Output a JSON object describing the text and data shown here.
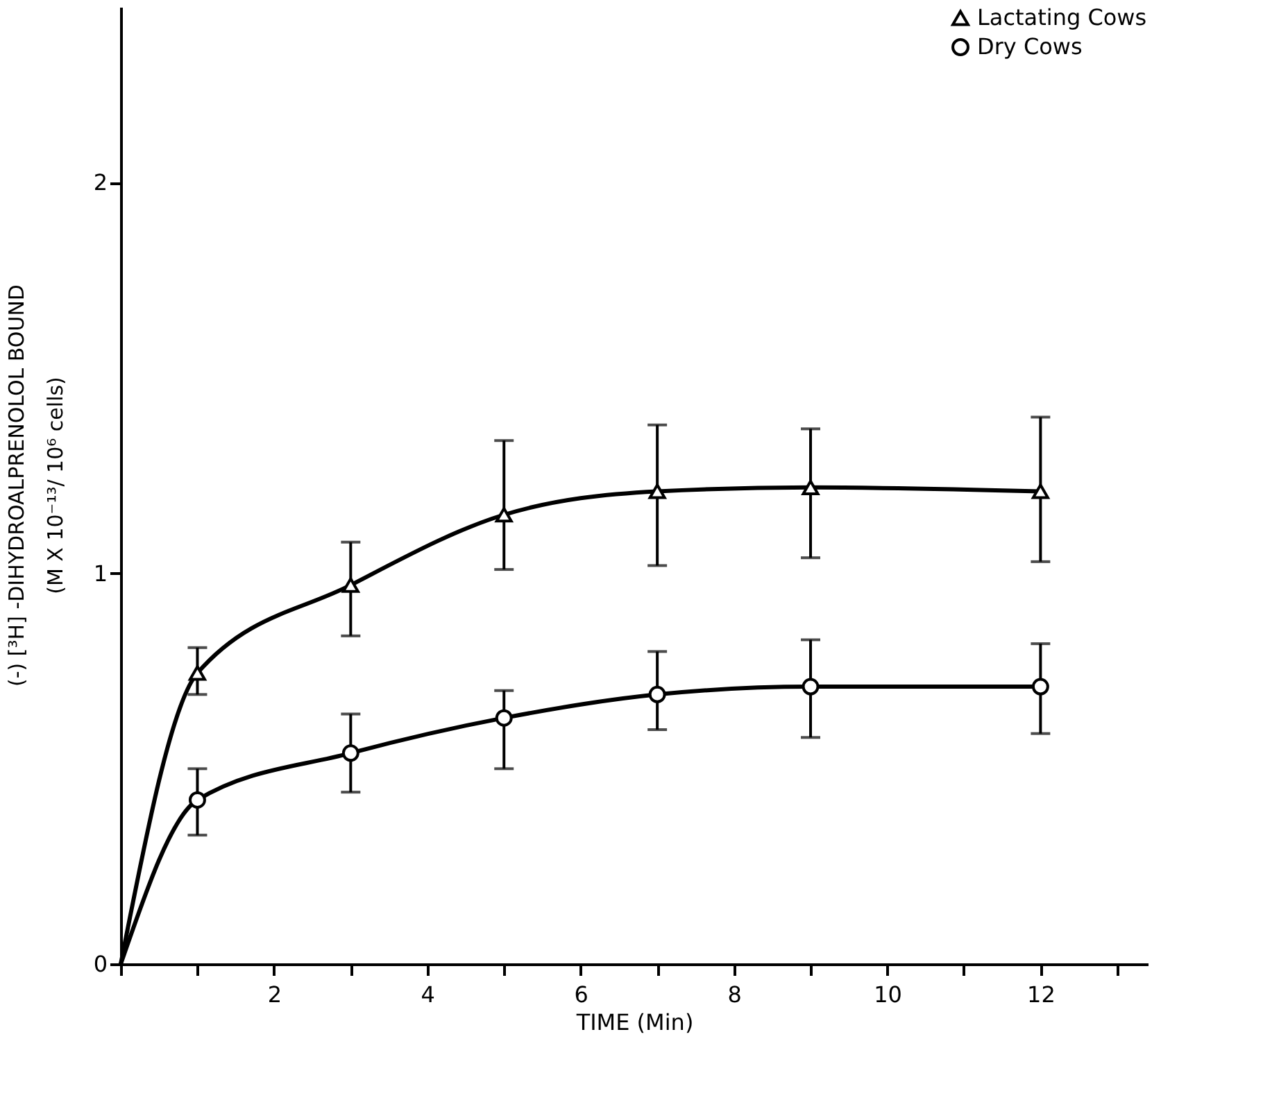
{
  "chart_data": {
    "type": "line",
    "xlabel": "TIME (Min)",
    "ylabel": "(-) [³H] -DIHYDROALPRENOLOL  BOUND\n(M X 10⁻¹³/ 10⁶ cells)",
    "x": [
      0,
      1,
      3,
      5,
      7,
      9,
      12
    ],
    "series": [
      {
        "name": "Lactating Cows",
        "color": "#000000",
        "marker": "triangle",
        "values": [
          0,
          0.745,
          0.97,
          1.15,
          1.21,
          1.22,
          1.21
        ],
        "errors": [
          null,
          [
            0.69,
            0.81
          ],
          [
            0.84,
            1.08
          ],
          [
            1.01,
            1.34
          ],
          [
            1.02,
            1.38
          ],
          [
            1.04,
            1.37
          ],
          [
            1.03,
            1.4
          ]
        ]
      },
      {
        "name": "Dry Cows",
        "color": "#000000",
        "marker": "circle",
        "values": [
          0,
          0.42,
          0.54,
          0.63,
          0.69,
          0.71,
          0.71
        ],
        "errors": [
          null,
          [
            0.33,
            0.5
          ],
          [
            0.44,
            0.64
          ],
          [
            0.5,
            0.7
          ],
          [
            0.6,
            0.8
          ],
          [
            0.58,
            0.83
          ],
          [
            0.59,
            0.82
          ]
        ]
      }
    ],
    "xlim": [
      0,
      13.4
    ],
    "ylim": [
      0,
      2.45
    ],
    "xticks": [
      {
        "value": 0,
        "label": null
      },
      {
        "value": 1,
        "label": null
      },
      2,
      {
        "value": 3,
        "label": null
      },
      4,
      {
        "value": 5,
        "label": null
      },
      6,
      {
        "value": 7,
        "label": null
      },
      8,
      {
        "value": 9,
        "label": null
      },
      10,
      {
        "value": 11,
        "label": null
      },
      12,
      {
        "value": 13,
        "label": null
      }
    ],
    "yticks": [
      0,
      1,
      2
    ],
    "grid": false,
    "legend": "top right",
    "line_style": "solid"
  }
}
